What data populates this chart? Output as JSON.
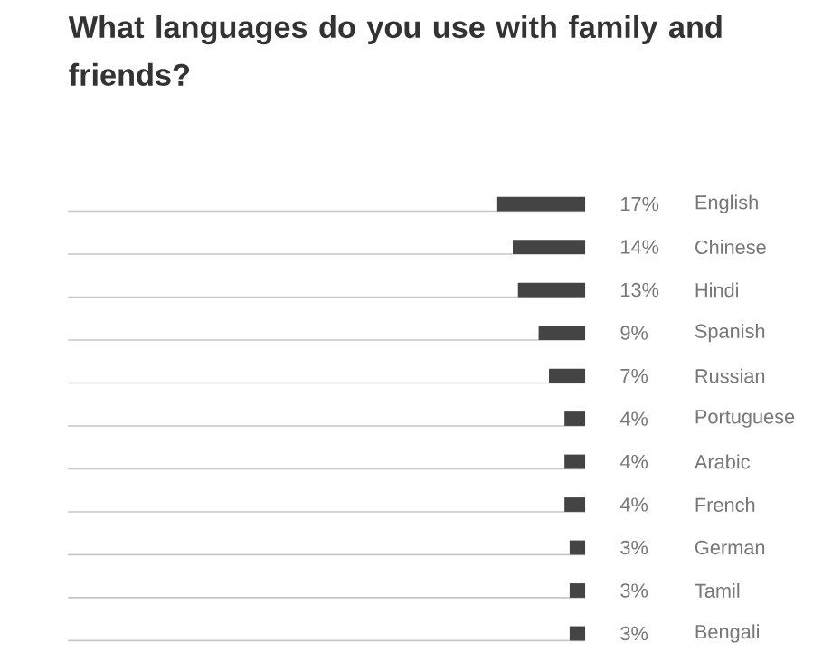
{
  "chart_data": {
    "type": "bar",
    "orientation": "horizontal",
    "title": "What languages do you use with family and friends?",
    "categories": [
      "English",
      "Chinese",
      "Hindi",
      "Spanish",
      "Russian",
      "Portuguese",
      "Arabic",
      "French",
      "German",
      "Tamil",
      "Bengali"
    ],
    "values": [
      17,
      14,
      13,
      9,
      7,
      4,
      4,
      4,
      3,
      3,
      3
    ],
    "value_labels": [
      "17%",
      "14%",
      "13%",
      "9%",
      "7%",
      "4%",
      "4%",
      "4%",
      "3%",
      "3%",
      "3%"
    ],
    "color": "#444444",
    "xlim": [
      100,
      0
    ],
    "grid": "y",
    "tick_labels": "y"
  }
}
